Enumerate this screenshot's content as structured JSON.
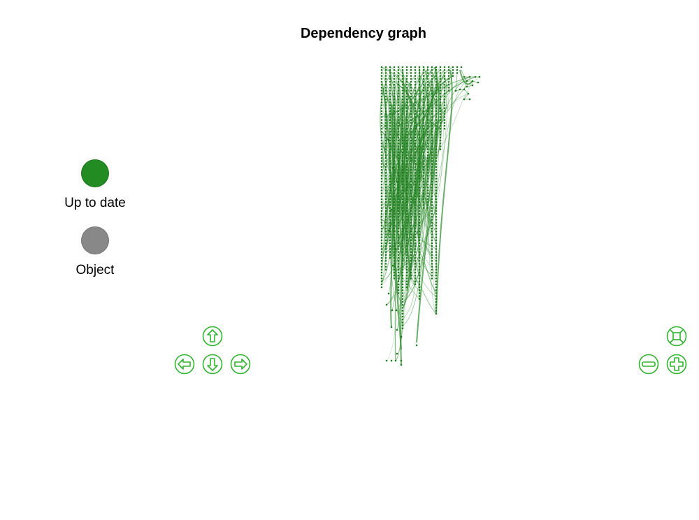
{
  "title": "Dependency graph",
  "legend": {
    "items": [
      {
        "label": "Up to date",
        "color": "#228b22"
      },
      {
        "label": "Object",
        "color": "#888888"
      }
    ]
  },
  "graph": {
    "node_color": "#1f7a1f",
    "edge_color": "#2e8b2e"
  },
  "controls": {
    "accent": "#2fb52f",
    "buttons": [
      "nav-up-icon",
      "nav-left-icon",
      "nav-down-icon",
      "nav-right-icon",
      "zoom-fit-icon",
      "zoom-out-icon",
      "zoom-in-icon"
    ]
  }
}
